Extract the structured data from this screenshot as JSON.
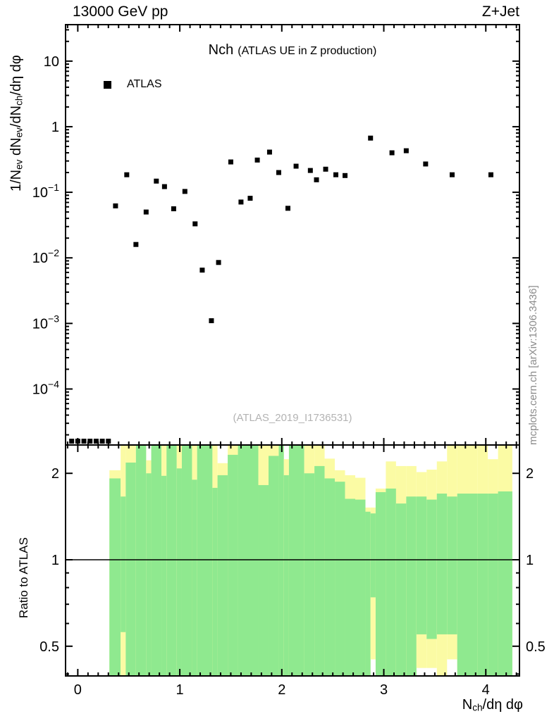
{
  "header": {
    "left": "13000 GeV pp",
    "right": "Z+Jet"
  },
  "title": {
    "main": "Nch",
    "sub": "(ATLAS UE in Z production)"
  },
  "legend": {
    "items": [
      {
        "label": "ATLAS",
        "marker": "filled-square",
        "color": "#000000"
      }
    ]
  },
  "watermark": "(ATLAS_2019_I1736531)",
  "side_note": "mcplots.cern.ch [arXiv:1306.3436]",
  "axes": {
    "y_main_label": {
      "p1": "1/N",
      "s1": "ev",
      "p2": " dN",
      "s2": "ev",
      "p3": "/dN",
      "s3": "ch",
      "p4": "/dη dφ"
    },
    "x_label": {
      "p1": "N",
      "s1": "ch",
      "p2": "/dη dφ"
    },
    "ratio_label": "Ratio to ATLAS",
    "x_ticks": [
      0,
      1,
      2,
      3,
      4
    ],
    "y_ticks_main": [
      {
        "v": 10,
        "base": "10",
        "exp": ""
      },
      {
        "v": 1,
        "base": "1",
        "exp": ""
      },
      {
        "v": 0.1,
        "base": "10",
        "exp": "−1"
      },
      {
        "v": 0.01,
        "base": "10",
        "exp": "−2"
      },
      {
        "v": 0.001,
        "base": "10",
        "exp": "−3"
      },
      {
        "v": 0.0001,
        "base": "10",
        "exp": "−4"
      }
    ]
  },
  "chart_data": {
    "type": "scatter",
    "title": "Nch (ATLAS UE in Z production)",
    "xlabel": "N_ch/dη dφ",
    "ylabel": "1/N_ev dN_ev/dN_ch/dη dφ",
    "x_scale": "linear",
    "y_scale": "log",
    "xlim": [
      -0.12,
      4.33
    ],
    "ylim": [
      1.4e-05,
      36
    ],
    "grid": false,
    "legend_position": "top-left-inside",
    "series": [
      {
        "name": "ATLAS",
        "marker": "filled-square",
        "color": "#000000",
        "points": [
          [
            -0.06,
            1.6e-05
          ],
          [
            0.0,
            1.6e-05
          ],
          [
            0.06,
            1.6e-05
          ],
          [
            0.12,
            1.6e-05
          ],
          [
            0.18,
            1.6e-05
          ],
          [
            0.24,
            1.6e-05
          ],
          [
            0.3,
            1.6e-05
          ],
          [
            0.37,
            0.062
          ],
          [
            0.48,
            0.185
          ],
          [
            0.57,
            0.016
          ],
          [
            0.67,
            0.05
          ],
          [
            0.77,
            0.148
          ],
          [
            0.85,
            0.122
          ],
          [
            0.94,
            0.056
          ],
          [
            1.05,
            0.103
          ],
          [
            1.15,
            0.033
          ],
          [
            1.22,
            0.0065
          ],
          [
            1.31,
            0.0011
          ],
          [
            1.38,
            0.0085
          ],
          [
            1.5,
            0.29
          ],
          [
            1.6,
            0.071
          ],
          [
            1.69,
            0.081
          ],
          [
            1.76,
            0.31
          ],
          [
            1.88,
            0.41
          ],
          [
            1.97,
            0.2
          ],
          [
            2.06,
            0.057
          ],
          [
            2.14,
            0.25
          ],
          [
            2.28,
            0.215
          ],
          [
            2.34,
            0.155
          ],
          [
            2.43,
            0.225
          ],
          [
            2.53,
            0.185
          ],
          [
            2.62,
            0.18
          ],
          [
            2.87,
            0.67
          ],
          [
            3.08,
            0.4
          ],
          [
            3.22,
            0.43
          ],
          [
            3.41,
            0.27
          ],
          [
            3.67,
            0.185
          ],
          [
            4.05,
            0.185
          ]
        ]
      }
    ],
    "ratio_panel": {
      "ylabel": "Ratio to ATLAS",
      "y_scale": "log",
      "ylim": [
        0.394,
        2.51
      ],
      "ticks": [
        2,
        1,
        0.5
      ],
      "reference_line": 1.0,
      "colors": {
        "outer": "#fbfba4",
        "inner": "#8fe98f"
      },
      "bands": [
        {
          "x": [
            0.31,
            0.42
          ],
          "yellow": [
            0.39,
            2.05
          ],
          "green": [
            0.39,
            1.92
          ]
        },
        {
          "x": [
            0.42,
            0.47
          ],
          "yellow": [
            0.39,
            2.51
          ],
          "green": [
            0.56,
            1.66
          ]
        },
        {
          "x": [
            0.47,
            0.57
          ],
          "yellow": [
            0.39,
            2.51
          ],
          "green": [
            0.39,
            2.18
          ]
        },
        {
          "x": [
            0.57,
            0.67
          ],
          "yellow": [
            0.39,
            2.51
          ],
          "green": [
            0.39,
            2.51
          ]
        },
        {
          "x": [
            0.67,
            0.72
          ],
          "yellow": [
            0.39,
            2.22
          ],
          "green": [
            0.39,
            2.0
          ]
        },
        {
          "x": [
            0.72,
            0.82
          ],
          "yellow": [
            0.39,
            2.51
          ],
          "green": [
            0.39,
            2.51
          ]
        },
        {
          "x": [
            0.82,
            0.87
          ],
          "yellow": [
            0.39,
            2.51
          ],
          "green": [
            0.39,
            1.96
          ]
        },
        {
          "x": [
            0.87,
            0.97
          ],
          "yellow": [
            0.39,
            2.51
          ],
          "green": [
            0.39,
            2.51
          ]
        },
        {
          "x": [
            0.97,
            1.02
          ],
          "yellow": [
            0.39,
            2.51
          ],
          "green": [
            0.39,
            2.08
          ]
        },
        {
          "x": [
            1.02,
            1.12
          ],
          "yellow": [
            0.39,
            2.51
          ],
          "green": [
            0.39,
            2.51
          ]
        },
        {
          "x": [
            1.12,
            1.17
          ],
          "yellow": [
            0.39,
            2.51
          ],
          "green": [
            0.39,
            1.9
          ]
        },
        {
          "x": [
            1.17,
            1.32
          ],
          "yellow": [
            0.39,
            2.51
          ],
          "green": [
            0.39,
            2.51
          ]
        },
        {
          "x": [
            1.32,
            1.37
          ],
          "yellow": [
            0.39,
            2.51
          ],
          "green": [
            0.39,
            1.78
          ]
        },
        {
          "x": [
            1.37,
            1.47
          ],
          "yellow": [
            0.39,
            2.17
          ],
          "green": [
            0.39,
            1.97
          ]
        },
        {
          "x": [
            1.47,
            1.57
          ],
          "yellow": [
            0.39,
            2.51
          ],
          "green": [
            0.39,
            2.32
          ]
        },
        {
          "x": [
            1.57,
            1.77
          ],
          "yellow": [
            0.39,
            2.51
          ],
          "green": [
            0.39,
            2.51
          ]
        },
        {
          "x": [
            1.77,
            1.87
          ],
          "yellow": [
            0.39,
            2.51
          ],
          "green": [
            0.39,
            1.82
          ]
        },
        {
          "x": [
            1.87,
            1.97
          ],
          "yellow": [
            0.39,
            2.51
          ],
          "green": [
            0.39,
            2.3
          ]
        },
        {
          "x": [
            1.97,
            2.02
          ],
          "yellow": [
            0.39,
            2.51
          ],
          "green": [
            0.39,
            2.51
          ]
        },
        {
          "x": [
            2.02,
            2.07
          ],
          "yellow": [
            0.39,
            2.24
          ],
          "green": [
            0.39,
            1.97
          ]
        },
        {
          "x": [
            2.07,
            2.22
          ],
          "yellow": [
            0.39,
            2.51
          ],
          "green": [
            0.39,
            2.51
          ]
        },
        {
          "x": [
            2.22,
            2.32
          ],
          "yellow": [
            0.39,
            2.51
          ],
          "green": [
            0.39,
            2.0
          ]
        },
        {
          "x": [
            2.32,
            2.42
          ],
          "yellow": [
            0.39,
            2.51
          ],
          "green": [
            0.39,
            2.12
          ]
        },
        {
          "x": [
            2.42,
            2.52
          ],
          "yellow": [
            0.39,
            2.25
          ],
          "green": [
            0.39,
            1.92
          ]
        },
        {
          "x": [
            2.52,
            2.62
          ],
          "yellow": [
            0.39,
            2.05
          ],
          "green": [
            0.39,
            1.87
          ]
        },
        {
          "x": [
            2.62,
            2.72
          ],
          "yellow": [
            0.39,
            1.97
          ],
          "green": [
            0.39,
            1.63
          ]
        },
        {
          "x": [
            2.72,
            2.82
          ],
          "yellow": [
            0.39,
            1.93
          ],
          "green": [
            0.39,
            1.62
          ]
        },
        {
          "x": [
            2.82,
            2.87
          ],
          "yellow": [
            0.39,
            1.52
          ],
          "green": [
            0.39,
            1.47
          ]
        },
        {
          "x": [
            2.87,
            2.92
          ],
          "yellow": [
            0.45,
            1.52
          ],
          "green": [
            0.74,
            1.45
          ]
        },
        {
          "x": [
            2.92,
            3.02
          ],
          "yellow": [
            0.39,
            1.77
          ],
          "green": [
            0.39,
            1.72
          ]
        },
        {
          "x": [
            3.02,
            3.12
          ],
          "yellow": [
            0.39,
            2.2
          ],
          "green": [
            0.39,
            1.77
          ]
        },
        {
          "x": [
            3.12,
            3.22
          ],
          "yellow": [
            0.39,
            2.12
          ],
          "green": [
            0.39,
            1.57
          ]
        },
        {
          "x": [
            3.22,
            3.32
          ],
          "yellow": [
            0.39,
            2.12
          ],
          "green": [
            0.39,
            1.66
          ]
        },
        {
          "x": [
            3.32,
            3.42
          ],
          "yellow": [
            0.42,
            2.02
          ],
          "green": [
            0.55,
            1.66
          ]
        },
        {
          "x": [
            3.42,
            3.52
          ],
          "yellow": [
            0.42,
            2.06
          ],
          "green": [
            0.53,
            1.62
          ]
        },
        {
          "x": [
            3.52,
            3.62
          ],
          "yellow": [
            0.39,
            2.2
          ],
          "green": [
            0.55,
            1.7
          ]
        },
        {
          "x": [
            3.62,
            3.72
          ],
          "yellow": [
            0.45,
            2.51
          ],
          "green": [
            0.55,
            1.66
          ]
        },
        {
          "x": [
            3.72,
            3.92
          ],
          "yellow": [
            0.39,
            2.51
          ],
          "green": [
            0.39,
            1.7
          ]
        },
        {
          "x": [
            3.92,
            4.02
          ],
          "yellow": [
            0.39,
            2.51
          ],
          "green": [
            0.39,
            1.7
          ]
        },
        {
          "x": [
            4.02,
            4.12
          ],
          "yellow": [
            0.39,
            2.24
          ],
          "green": [
            0.39,
            1.7
          ]
        },
        {
          "x": [
            4.12,
            4.26
          ],
          "yellow": [
            0.39,
            2.51
          ],
          "green": [
            0.39,
            1.73
          ]
        }
      ]
    }
  }
}
